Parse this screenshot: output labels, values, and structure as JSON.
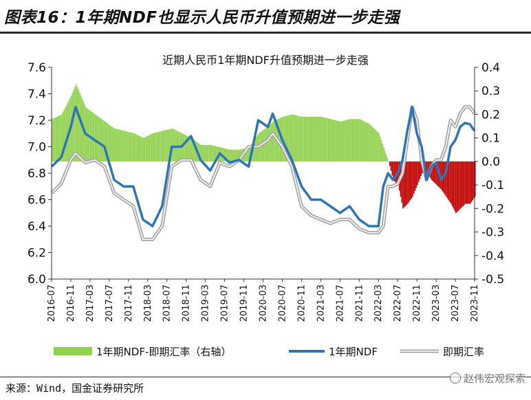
{
  "figure_title": "图表16：1年期NDF也显示人民币升值预期进一步走强",
  "source": "来源：Wind，国金证券研究所",
  "watermark": "赵伟宏观探索",
  "colors": {
    "bar_positive": "#92d050",
    "bar_negative": "#c00000",
    "ndf_line": "#2e75b6",
    "spot_line": "#a6a6a6"
  },
  "chart_data": {
    "type": "line",
    "title": "近期人民币1年期NDF升值预期进一步走强",
    "y_left": {
      "lim": [
        6.0,
        7.6
      ],
      "ticks": [
        "6.0",
        "6.2",
        "6.4",
        "6.6",
        "6.8",
        "7.0",
        "7.2",
        "7.4",
        "7.6"
      ]
    },
    "y_right": {
      "lim": [
        -0.5,
        0.4
      ],
      "ticks": [
        "0.4",
        "0.3",
        "0.2",
        "0.1",
        "0.0",
        "-0.1",
        "-0.2",
        "-0.3",
        "-0.4",
        "-0.5"
      ]
    },
    "x_ticks": [
      "2016-07",
      "2016-11",
      "2017-03",
      "2017-07",
      "2017-11",
      "2018-03",
      "2018-07",
      "2018-11",
      "2019-03",
      "2019-07",
      "2019-11",
      "2020-03",
      "2020-07",
      "2020-11",
      "2021-03",
      "2021-07",
      "2021-11",
      "2022-03",
      "2022-07",
      "2022-11",
      "2023-03",
      "2023-07",
      "2023-11"
    ],
    "legend": [
      "1年期NDF-即期汇率（右轴）",
      "1年期NDF",
      "即期汇率"
    ],
    "grid": false,
    "series": [
      {
        "name": "1年期NDF",
        "axis": "left",
        "x": [
          "2016-07",
          "2016-09",
          "2016-11",
          "2016-12",
          "2017-02",
          "2017-04",
          "2017-06",
          "2017-08",
          "2017-10",
          "2017-12",
          "2018-02",
          "2018-04",
          "2018-06",
          "2018-08",
          "2018-10",
          "2018-12",
          "2019-02",
          "2019-04",
          "2019-06",
          "2019-08",
          "2019-10",
          "2019-12",
          "2020-02",
          "2020-04",
          "2020-05",
          "2020-07",
          "2020-09",
          "2020-11",
          "2021-01",
          "2021-03",
          "2021-05",
          "2021-07",
          "2021-09",
          "2021-11",
          "2022-01",
          "2022-03",
          "2022-04",
          "2022-05",
          "2022-06",
          "2022-07",
          "2022-08",
          "2022-09",
          "2022-10",
          "2022-11",
          "2022-12",
          "2023-01",
          "2023-02",
          "2023-03",
          "2023-04",
          "2023-05",
          "2023-06",
          "2023-07",
          "2023-08",
          "2023-09",
          "2023-10",
          "2023-11"
        ],
        "values": [
          6.85,
          6.92,
          7.15,
          7.3,
          7.1,
          7.05,
          7.0,
          6.75,
          6.7,
          6.7,
          6.45,
          6.4,
          6.55,
          7.0,
          7.0,
          7.08,
          6.9,
          6.82,
          6.95,
          6.88,
          6.9,
          6.85,
          7.2,
          7.15,
          7.25,
          7.05,
          6.9,
          6.7,
          6.6,
          6.6,
          6.55,
          6.5,
          6.55,
          6.45,
          6.4,
          6.4,
          6.7,
          6.8,
          6.75,
          6.8,
          6.9,
          7.12,
          7.3,
          7.1,
          7.0,
          6.75,
          6.85,
          6.88,
          6.75,
          6.8,
          7.0,
          7.05,
          7.15,
          7.18,
          7.17,
          7.12
        ]
      },
      {
        "name": "即期汇率",
        "axis": "left",
        "x": [
          "2016-07",
          "2016-09",
          "2016-11",
          "2016-12",
          "2017-02",
          "2017-04",
          "2017-06",
          "2017-08",
          "2017-10",
          "2017-12",
          "2018-02",
          "2018-04",
          "2018-06",
          "2018-08",
          "2018-10",
          "2018-12",
          "2019-02",
          "2019-04",
          "2019-06",
          "2019-08",
          "2019-10",
          "2019-12",
          "2020-02",
          "2020-04",
          "2020-05",
          "2020-07",
          "2020-09",
          "2020-11",
          "2021-01",
          "2021-03",
          "2021-05",
          "2021-07",
          "2021-09",
          "2021-11",
          "2022-01",
          "2022-03",
          "2022-04",
          "2022-05",
          "2022-06",
          "2022-07",
          "2022-08",
          "2022-09",
          "2022-10",
          "2022-11",
          "2022-12",
          "2023-01",
          "2023-02",
          "2023-03",
          "2023-04",
          "2023-05",
          "2023-06",
          "2023-07",
          "2023-08",
          "2023-09",
          "2023-10",
          "2023-11"
        ],
        "values": [
          6.65,
          6.72,
          6.9,
          6.95,
          6.88,
          6.9,
          6.85,
          6.65,
          6.6,
          6.55,
          6.3,
          6.3,
          6.4,
          6.85,
          6.9,
          6.9,
          6.75,
          6.7,
          6.88,
          6.85,
          6.9,
          7.0,
          7.0,
          7.05,
          7.1,
          7.0,
          6.85,
          6.55,
          6.48,
          6.45,
          6.42,
          6.45,
          6.45,
          6.38,
          6.35,
          6.35,
          6.4,
          6.7,
          6.7,
          6.72,
          6.8,
          7.05,
          7.3,
          7.2,
          6.9,
          6.75,
          6.85,
          6.9,
          6.9,
          7.0,
          7.2,
          7.15,
          7.25,
          7.3,
          7.3,
          7.25
        ]
      },
      {
        "name": "1年期NDF-即期汇率（右轴）",
        "axis": "right",
        "type": "bar",
        "x": [
          "2016-07",
          "2016-09",
          "2016-11",
          "2016-12",
          "2017-02",
          "2017-04",
          "2017-06",
          "2017-08",
          "2017-10",
          "2017-12",
          "2018-02",
          "2018-04",
          "2018-06",
          "2018-08",
          "2018-10",
          "2018-12",
          "2019-02",
          "2019-04",
          "2019-06",
          "2019-08",
          "2019-10",
          "2019-12",
          "2020-02",
          "2020-04",
          "2020-05",
          "2020-07",
          "2020-09",
          "2020-11",
          "2021-01",
          "2021-03",
          "2021-05",
          "2021-07",
          "2021-09",
          "2021-11",
          "2022-01",
          "2022-03",
          "2022-04",
          "2022-05",
          "2022-06",
          "2022-07",
          "2022-08",
          "2022-09",
          "2022-10",
          "2022-11",
          "2022-12",
          "2023-01",
          "2023-02",
          "2023-03",
          "2023-04",
          "2023-05",
          "2023-06",
          "2023-07",
          "2023-08",
          "2023-09",
          "2023-10",
          "2023-11"
        ],
        "values": [
          0.18,
          0.2,
          0.28,
          0.33,
          0.23,
          0.2,
          0.17,
          0.14,
          0.13,
          0.12,
          0.1,
          0.12,
          0.13,
          0.14,
          0.12,
          0.1,
          0.07,
          0.07,
          0.06,
          0.05,
          0.05,
          0.06,
          0.12,
          0.15,
          0.17,
          0.19,
          0.2,
          0.19,
          0.19,
          0.19,
          0.18,
          0.17,
          0.18,
          0.18,
          0.16,
          0.12,
          0.06,
          0.0,
          -0.08,
          -0.1,
          -0.2,
          -0.18,
          -0.15,
          -0.1,
          -0.05,
          -0.05,
          -0.08,
          -0.1,
          -0.12,
          -0.15,
          -0.18,
          -0.22,
          -0.2,
          -0.18,
          -0.18,
          -0.15
        ]
      }
    ]
  }
}
